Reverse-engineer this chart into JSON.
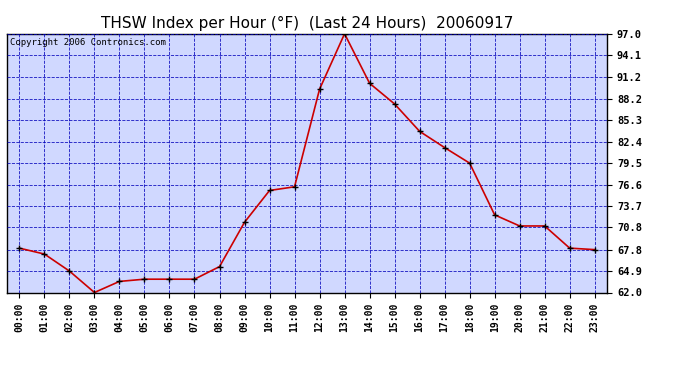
{
  "title": "THSW Index per Hour (°F)  (Last 24 Hours)  20060917",
  "copyright": "Copyright 2006 Contronics.com",
  "hours": [
    "00:00",
    "01:00",
    "02:00",
    "03:00",
    "04:00",
    "05:00",
    "06:00",
    "07:00",
    "08:00",
    "09:00",
    "10:00",
    "11:00",
    "12:00",
    "13:00",
    "14:00",
    "15:00",
    "16:00",
    "17:00",
    "18:00",
    "19:00",
    "20:00",
    "21:00",
    "22:00",
    "23:00"
  ],
  "values": [
    68.0,
    67.2,
    64.9,
    62.0,
    63.5,
    63.8,
    63.8,
    63.8,
    65.5,
    71.5,
    75.8,
    76.3,
    89.5,
    97.0,
    90.3,
    87.5,
    83.8,
    81.6,
    79.5,
    72.5,
    71.0,
    71.0,
    68.0,
    67.8
  ],
  "ylim": [
    62.0,
    97.0
  ],
  "yticks": [
    62.0,
    64.9,
    67.8,
    70.8,
    73.7,
    76.6,
    79.5,
    82.4,
    85.3,
    88.2,
    91.2,
    94.1,
    97.0
  ],
  "line_color": "#cc0000",
  "marker_color": "#000000",
  "bg_color": "#ffffff",
  "plot_bg": "#d0d8ff",
  "grid_color": "#0000bb",
  "title_color": "#000000",
  "border_color": "#000000",
  "title_fontsize": 11,
  "copyright_fontsize": 6.5
}
